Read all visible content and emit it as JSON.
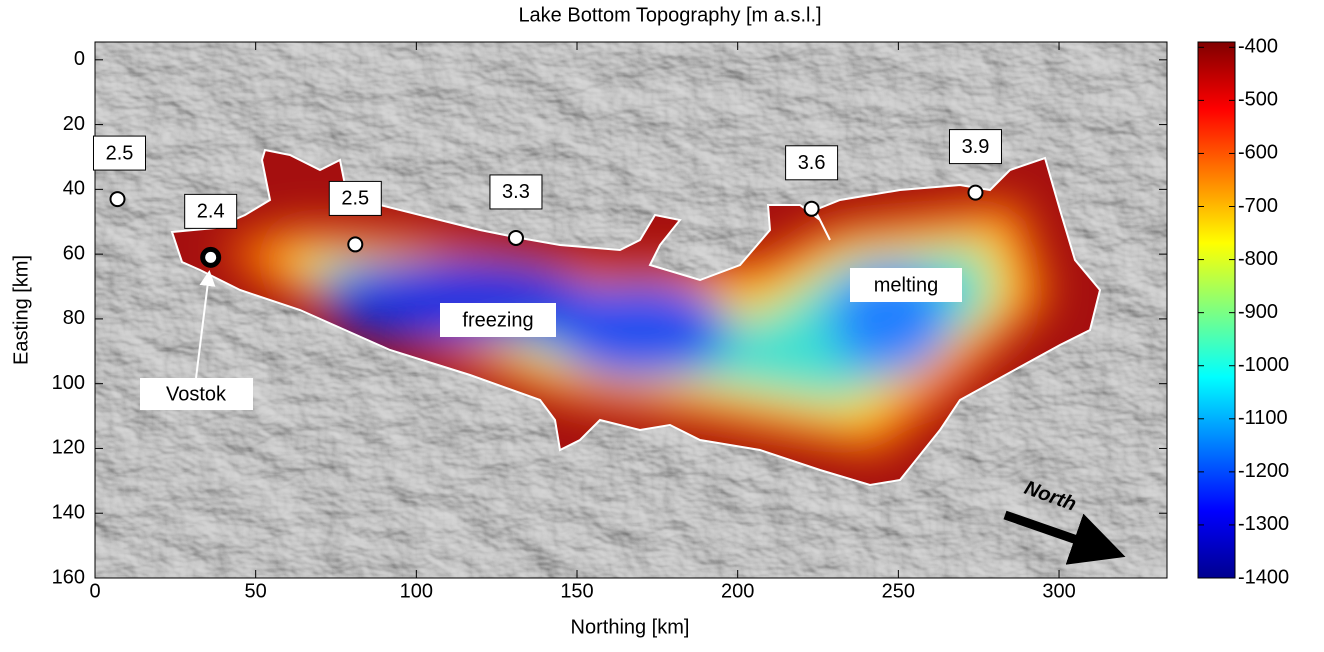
{
  "chart_data": {
    "type": "scatter",
    "title": "Lake Bottom Topography [m a.s.l.]",
    "x_label": "Northing [km]",
    "y_label": "Easting [km]",
    "xlim": [
      0,
      333.6
    ],
    "ylim": [
      -5.5,
      160
    ],
    "y_inverted": true,
    "xticks": [
      0,
      50,
      100,
      150,
      200,
      250,
      300
    ],
    "yticks": [
      0,
      20,
      40,
      60,
      80,
      100,
      120,
      140,
      160
    ],
    "x": [
      7,
      36,
      81,
      131,
      223,
      274
    ],
    "y": [
      43,
      61,
      57,
      55,
      46,
      41
    ],
    "values": [
      2.5,
      2.4,
      2.5,
      3.3,
      3.6,
      3.9
    ],
    "colorbar": {
      "clim": [
        -1400,
        -390
      ],
      "ticks": [
        -400,
        -500,
        -600,
        -700,
        -800,
        -900,
        -1000,
        -1100,
        -1200,
        -1300,
        -1400
      ],
      "colormap": "jet"
    },
    "annotations": [
      "Vostok",
      "freezing",
      "melting",
      "North"
    ]
  }
}
